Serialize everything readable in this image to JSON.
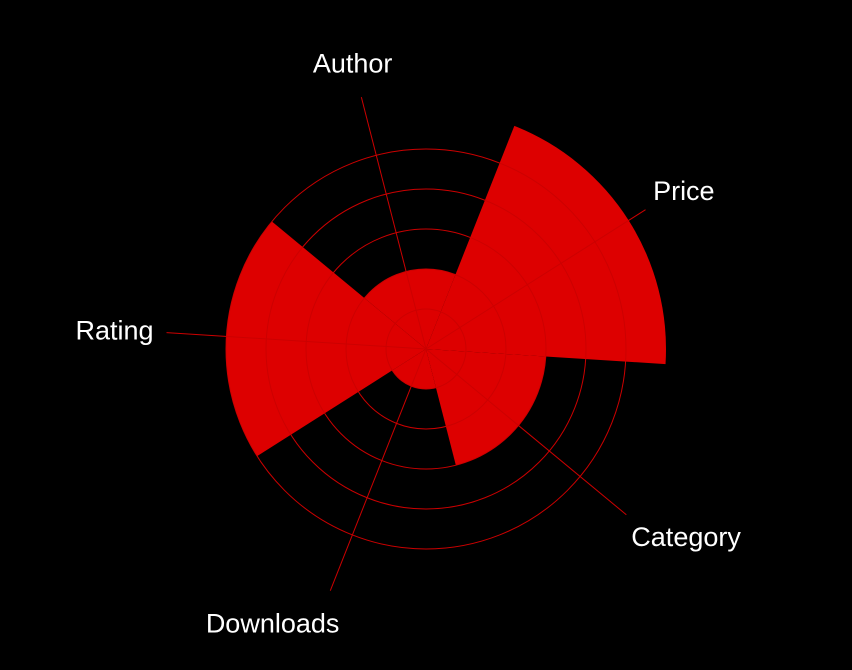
{
  "chart_data": {
    "type": "polar-area",
    "categories": [
      "Price",
      "Category",
      "Downloads",
      "Rating",
      "Author"
    ],
    "values": [
      6,
      3,
      1,
      5,
      2
    ],
    "rlim": [
      0,
      6
    ],
    "rings": [
      1,
      2,
      3,
      4,
      5
    ],
    "grid": true,
    "colors": {
      "background": "#000000",
      "fill": "#dd0000",
      "grid": "#cc0000",
      "text": "#ffffff"
    }
  }
}
